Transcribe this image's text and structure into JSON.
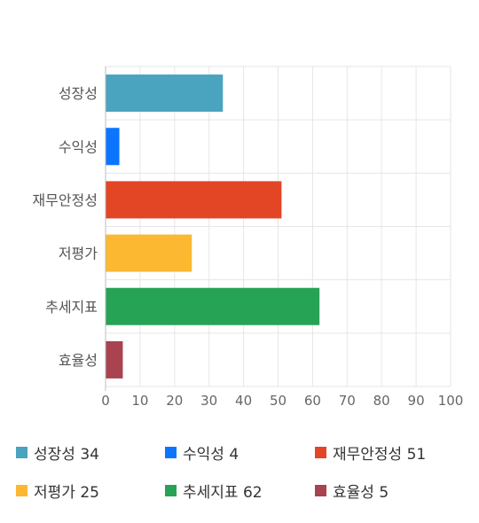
{
  "chart_data": {
    "type": "bar",
    "orientation": "horizontal",
    "categories": [
      "성장성",
      "수익성",
      "재무안정성",
      "저평가",
      "추세지표",
      "효율성"
    ],
    "values": [
      34,
      4,
      51,
      25,
      62,
      5
    ],
    "colors": [
      "#4aa3bf",
      "#0b75ff",
      "#e24625",
      "#fbb830",
      "#27a356",
      "#a8434f"
    ],
    "xlim": [
      0,
      100
    ],
    "xticks": [
      0,
      10,
      20,
      30,
      40,
      50,
      60,
      70,
      80,
      90,
      100
    ],
    "grid": true,
    "legend_position": "bottom"
  },
  "legend": [
    {
      "label": "성장성 34",
      "color": "#4aa3bf"
    },
    {
      "label": "수익성 4",
      "color": "#0b75ff"
    },
    {
      "label": "재무안정성 51",
      "color": "#e24625"
    },
    {
      "label": "저평가 25",
      "color": "#fbb830"
    },
    {
      "label": "추세지표 62",
      "color": "#27a356"
    },
    {
      "label": "효율성 5",
      "color": "#a8434f"
    }
  ]
}
